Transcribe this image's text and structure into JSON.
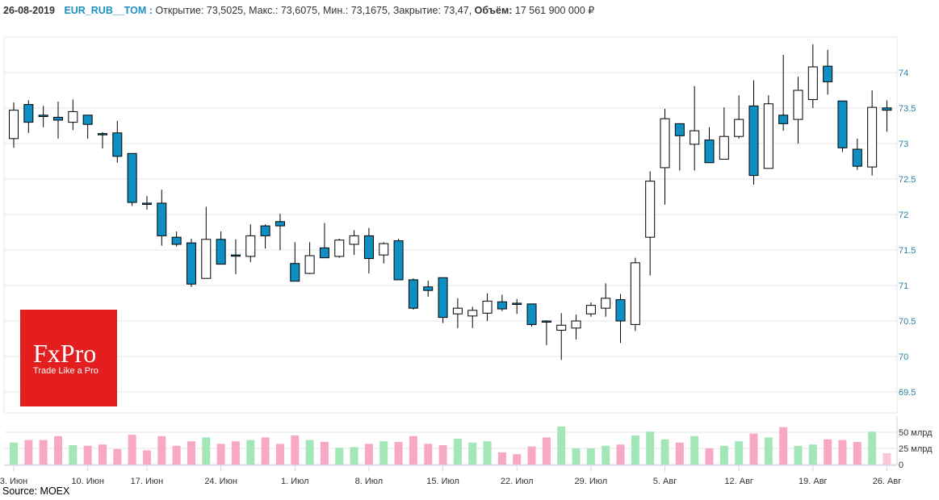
{
  "header": {
    "date": "26-08-2019",
    "ticker": "EUR_RUB__TOM :",
    "open_label": "Открытие:",
    "open": "73,5025",
    "high_label": "Макс.:",
    "high": "73,6075",
    "low_label": "Мин.:",
    "low": "73,1675",
    "close_label": "Закрытие:",
    "close": "73,47",
    "volume_label": "Объём:",
    "volume": "17 561 900 000 ₽"
  },
  "logo": {
    "name": "FxPro",
    "slogan": "Trade Like a Pro",
    "color": "#e41e1e"
  },
  "source": "Source: MOEX",
  "chart_data": {
    "type": "candlestick",
    "ylim": [
      69.25,
      74.5
    ],
    "y_ticks": [
      "69.5",
      "70",
      "70.5",
      "71",
      "71.5",
      "72",
      "72.5",
      "73",
      "73.5",
      "74"
    ],
    "volume_ticks": [
      "0",
      "25 млрд",
      "50 млрд"
    ],
    "volume_unit": "млрд",
    "x_tick_labels": [
      "3. Июн",
      "10. Июн",
      "17. Июн",
      "24. Июн",
      "1. Июл",
      "8. Июл",
      "15. Июл",
      "22. Июл",
      "29. Июл",
      "5. Авг",
      "12. Авг",
      "19. Авг",
      "26. Авг"
    ],
    "x_tick_index": [
      0,
      5,
      9,
      14,
      19,
      24,
      29,
      34,
      39,
      44,
      49,
      54,
      59
    ],
    "colors": {
      "up": "#ffffff",
      "down": "#0e8fc4",
      "vol_up": "#a3e6b8",
      "vol_down": "#f7a8c6",
      "vol_current": "#fbc6dc",
      "grid": "#e6e6e6",
      "axis_text": "#2a7fa3"
    },
    "ohlc": [
      [
        73.07,
        73.58,
        72.94,
        73.47
      ],
      [
        73.55,
        73.61,
        73.15,
        73.3
      ],
      [
        73.4,
        73.53,
        73.23,
        73.38
      ],
      [
        73.37,
        73.59,
        73.07,
        73.33
      ],
      [
        73.3,
        73.62,
        73.19,
        73.45
      ],
      [
        73.4,
        73.4,
        73.07,
        73.27
      ],
      [
        73.14,
        73.16,
        72.93,
        73.13
      ],
      [
        73.15,
        73.32,
        72.73,
        72.82
      ],
      [
        72.86,
        72.86,
        72.12,
        72.17
      ],
      [
        72.16,
        72.26,
        72.07,
        72.15
      ],
      [
        72.16,
        72.35,
        71.56,
        71.7
      ],
      [
        71.68,
        71.76,
        71.55,
        71.58
      ],
      [
        71.6,
        71.66,
        70.98,
        71.02
      ],
      [
        71.1,
        72.11,
        71.1,
        71.65
      ],
      [
        71.65,
        71.76,
        71.3,
        71.3
      ],
      [
        71.43,
        71.65,
        71.16,
        71.42
      ],
      [
        71.41,
        71.86,
        71.33,
        71.7
      ],
      [
        71.84,
        71.86,
        71.52,
        71.7
      ],
      [
        71.9,
        72.01,
        71.5,
        71.84
      ],
      [
        71.31,
        71.61,
        71.06,
        71.06
      ],
      [
        71.17,
        71.61,
        71.16,
        71.42
      ],
      [
        71.53,
        71.88,
        71.39,
        71.39
      ],
      [
        71.41,
        71.66,
        71.39,
        71.64
      ],
      [
        71.58,
        71.78,
        71.43,
        71.7
      ],
      [
        71.7,
        71.81,
        71.17,
        71.38
      ],
      [
        71.43,
        71.61,
        71.31,
        71.59
      ],
      [
        71.63,
        71.66,
        71.08,
        71.08
      ],
      [
        71.08,
        71.1,
        70.66,
        70.68
      ],
      [
        70.98,
        71.07,
        70.84,
        70.93
      ],
      [
        71.11,
        71.11,
        70.47,
        70.55
      ],
      [
        70.6,
        70.82,
        70.4,
        70.68
      ],
      [
        70.57,
        70.7,
        70.4,
        70.65
      ],
      [
        70.61,
        70.89,
        70.5,
        70.78
      ],
      [
        70.77,
        70.87,
        70.64,
        70.67
      ],
      [
        70.75,
        70.81,
        70.6,
        70.74
      ],
      [
        70.74,
        70.74,
        70.42,
        70.45
      ],
      [
        70.5,
        70.51,
        70.16,
        70.49
      ],
      [
        70.37,
        70.61,
        69.95,
        70.44
      ],
      [
        70.4,
        70.59,
        70.24,
        70.5
      ],
      [
        70.6,
        70.76,
        70.56,
        70.72
      ],
      [
        70.68,
        71.03,
        70.56,
        70.82
      ],
      [
        70.8,
        70.88,
        70.19,
        70.5
      ],
      [
        70.45,
        71.39,
        70.36,
        71.32
      ],
      [
        71.68,
        72.61,
        71.14,
        72.47
      ],
      [
        72.66,
        73.49,
        72.14,
        73.35
      ],
      [
        73.28,
        73.28,
        72.62,
        73.11
      ],
      [
        72.99,
        73.81,
        72.62,
        73.18
      ],
      [
        73.05,
        73.23,
        72.73,
        72.73
      ],
      [
        72.78,
        73.51,
        72.78,
        73.1
      ],
      [
        73.1,
        73.68,
        73.07,
        73.34
      ],
      [
        73.53,
        73.89,
        72.42,
        72.55
      ],
      [
        72.65,
        73.68,
        72.65,
        73.56
      ],
      [
        73.4,
        74.25,
        73.18,
        73.28
      ],
      [
        73.34,
        73.94,
        73.0,
        73.75
      ],
      [
        73.62,
        74.4,
        73.5,
        74.08
      ],
      [
        74.09,
        74.32,
        73.69,
        73.87
      ],
      [
        73.6,
        73.6,
        72.88,
        72.94
      ],
      [
        72.92,
        73.07,
        72.63,
        72.68
      ],
      [
        72.67,
        73.75,
        72.55,
        73.51
      ],
      [
        73.5025,
        73.6075,
        73.1675,
        73.47
      ]
    ],
    "volume": [
      34,
      38,
      38,
      44,
      30,
      29,
      31,
      24,
      46,
      22,
      44,
      29,
      36,
      42,
      32,
      36,
      38,
      42,
      32,
      45,
      38,
      35,
      26,
      27,
      32,
      36,
      35,
      44,
      32,
      30,
      40,
      34,
      36,
      19,
      16,
      28,
      42,
      59,
      25,
      25,
      29,
      31,
      45,
      51,
      39,
      34,
      44,
      25,
      29,
      36,
      48,
      42,
      58,
      29,
      31,
      39,
      38,
      35,
      51,
      17.5
    ]
  }
}
